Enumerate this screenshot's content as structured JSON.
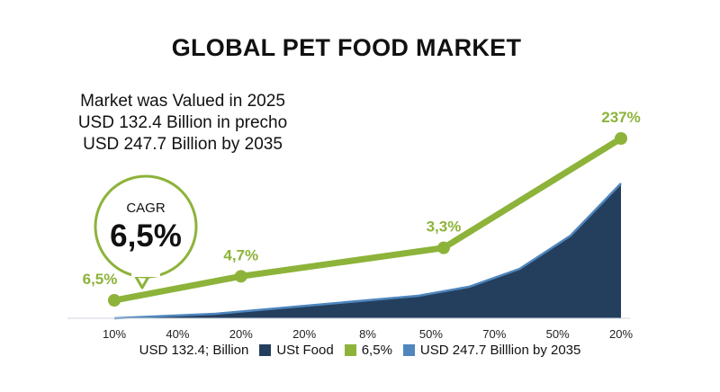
{
  "title": "GLOBAL PET FOOD MARKET",
  "info_lines": [
    "Market was Valued in 2025",
    "USD 132.4 Billion in precho",
    "USD 247.7 Billion by 2035"
  ],
  "badge": {
    "label": "CAGR",
    "value": "6,5%"
  },
  "colors": {
    "line": "#8db33a",
    "area": "#243f5e",
    "area_edge": "#4f86bd"
  },
  "chart_data": {
    "type": "line",
    "title": "GLOBAL PET FOOD MARKET",
    "x_labels": [
      "10%",
      "40%",
      "20%",
      "20%",
      "8%",
      "50%",
      "70%",
      "50%",
      "20%"
    ],
    "series": [
      {
        "kind": "line",
        "points": [
          {
            "x": 0,
            "y": 12,
            "label": "6,5%"
          },
          {
            "x": 2.5,
            "y": 28,
            "label": "4,7%"
          },
          {
            "x": 6.5,
            "y": 47,
            "label": "3,3%"
          },
          {
            "x": 10,
            "y": 120,
            "label": "237%"
          }
        ]
      },
      {
        "kind": "area",
        "points": [
          {
            "x": 0,
            "y": 0
          },
          {
            "x": 2,
            "y": 3
          },
          {
            "x": 4,
            "y": 9
          },
          {
            "x": 6,
            "y": 15
          },
          {
            "x": 7,
            "y": 21
          },
          {
            "x": 8,
            "y": 33
          },
          {
            "x": 9,
            "y": 55
          },
          {
            "x": 10,
            "y": 90
          }
        ]
      }
    ],
    "xlim": [
      0,
      10
    ],
    "ylim": [
      0,
      150
    ],
    "legend": [
      {
        "label": "USD 132.4; Billion",
        "color": "#243f5e"
      },
      {
        "label": "USt Food",
        "color": "#243f5e"
      },
      {
        "label": "6,5%",
        "color": "#8db33a"
      },
      {
        "label": "USD 247.7 Billlion by 2035",
        "color": "#4f86bd"
      }
    ],
    "legend_position": "bottom",
    "grid": false
  }
}
